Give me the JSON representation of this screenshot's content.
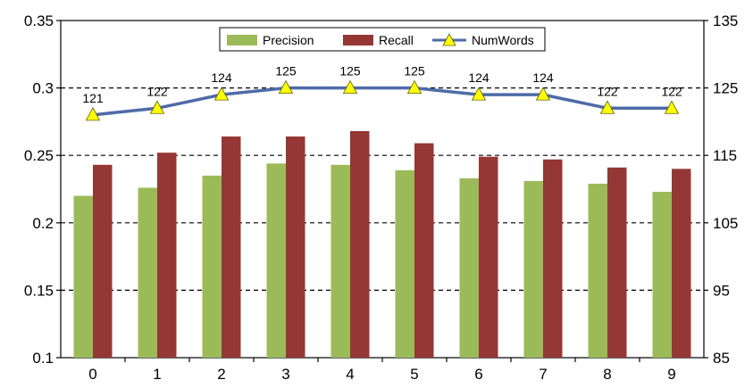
{
  "chart_data": {
    "type": "bar",
    "categories": [
      "0",
      "1",
      "2",
      "3",
      "4",
      "5",
      "6",
      "7",
      "8",
      "9"
    ],
    "series": [
      {
        "name": "Precision",
        "type": "bar",
        "axis": "left",
        "color": "#9BBB59",
        "values": [
          0.22,
          0.226,
          0.235,
          0.244,
          0.243,
          0.239,
          0.233,
          0.231,
          0.229,
          0.223
        ]
      },
      {
        "name": "Recall",
        "type": "bar",
        "axis": "left",
        "color": "#953735",
        "values": [
          0.243,
          0.252,
          0.264,
          0.264,
          0.268,
          0.259,
          0.249,
          0.247,
          0.241,
          0.24
        ]
      },
      {
        "name": "NumWords",
        "type": "line",
        "axis": "right",
        "color": "#4F6BA8",
        "marker": "triangle",
        "marker_color": "#FFFF00",
        "values": [
          121,
          122,
          124,
          125,
          125,
          125,
          124,
          124,
          122,
          122
        ],
        "labels": [
          "121",
          "122",
          "124",
          "125",
          "125",
          "125",
          "124",
          "124",
          "122",
          "122"
        ]
      }
    ],
    "y_left": {
      "lim": [
        0.1,
        0.35
      ],
      "ticks": [
        "0.1",
        "0.15",
        "0.2",
        "0.25",
        "0.3",
        "0.35"
      ]
    },
    "y_right": {
      "lim": [
        85,
        135
      ],
      "ticks": [
        "85",
        "95",
        "105",
        "115",
        "125",
        "135"
      ]
    },
    "grid": "horizontal dashed",
    "legend": "top-center"
  }
}
